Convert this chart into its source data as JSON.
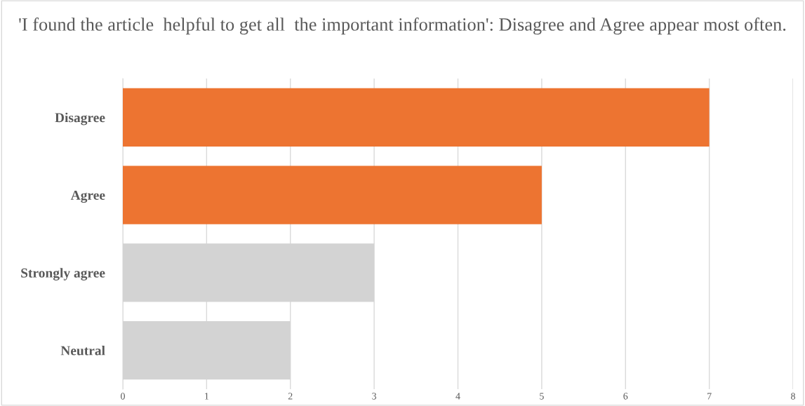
{
  "chart_data": {
    "type": "bar",
    "orientation": "horizontal",
    "title": "'I found the article  helpful to get all  the important information': Disagree and Agree appear most often.",
    "categories": [
      "Disagree",
      "Agree",
      "Strongly agree",
      "Neutral"
    ],
    "values": [
      7,
      5,
      3,
      2
    ],
    "colors": [
      "#ed7431",
      "#ed7431",
      "#d3d3d3",
      "#d3d3d3"
    ],
    "xlim": [
      0,
      8
    ],
    "xticks": [
      0,
      1,
      2,
      3,
      4,
      5,
      6,
      7,
      8
    ],
    "grid": "x"
  }
}
